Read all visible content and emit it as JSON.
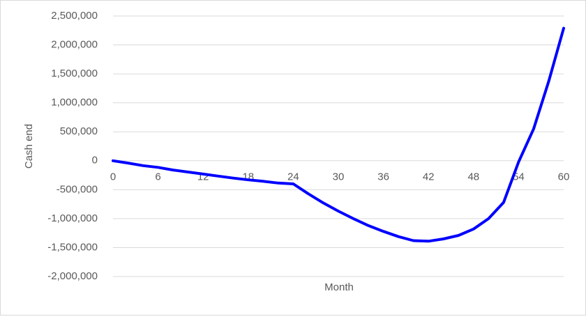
{
  "chart_data": {
    "type": "line",
    "x_label": "Month",
    "y_label": "Cash end",
    "x": [
      0,
      2,
      4,
      6,
      8,
      10,
      12,
      14,
      16,
      18,
      20,
      22,
      24,
      26,
      28,
      30,
      32,
      34,
      36,
      38,
      40,
      42,
      44,
      46,
      48,
      50,
      52,
      54,
      56,
      58,
      60
    ],
    "values": [
      0,
      -40000,
      -85000,
      -115000,
      -160000,
      -195000,
      -230000,
      -265000,
      -300000,
      -330000,
      -355000,
      -385000,
      -400000,
      -570000,
      -730000,
      -870000,
      -1000000,
      -1120000,
      -1220000,
      -1310000,
      -1380000,
      -1390000,
      -1350000,
      -1290000,
      -1180000,
      -1000000,
      -720000,
      -20000,
      550000,
      1370000,
      2290000
    ],
    "color": "#0000ff",
    "xlim": [
      0,
      60
    ],
    "xticks": [
      0,
      6,
      12,
      18,
      24,
      30,
      36,
      42,
      48,
      54,
      60
    ],
    "ylim": [
      -2000000,
      2500000
    ],
    "yticks": [
      {
        "value": -2000000,
        "label": "-2,000,000"
      },
      {
        "value": -1500000,
        "label": "-1,500,000"
      },
      {
        "value": -1000000,
        "label": "-1,000,000"
      },
      {
        "value": -500000,
        "label": "-500,000"
      },
      0,
      {
        "value": 500000,
        "label": "500,000"
      },
      {
        "value": 1000000,
        "label": "1,000,000"
      },
      {
        "value": 1500000,
        "label": "1,500,000"
      },
      {
        "value": 2000000,
        "label": "2,000,000"
      },
      {
        "value": 2500000,
        "label": "2,500,000"
      }
    ],
    "grid": true
  }
}
